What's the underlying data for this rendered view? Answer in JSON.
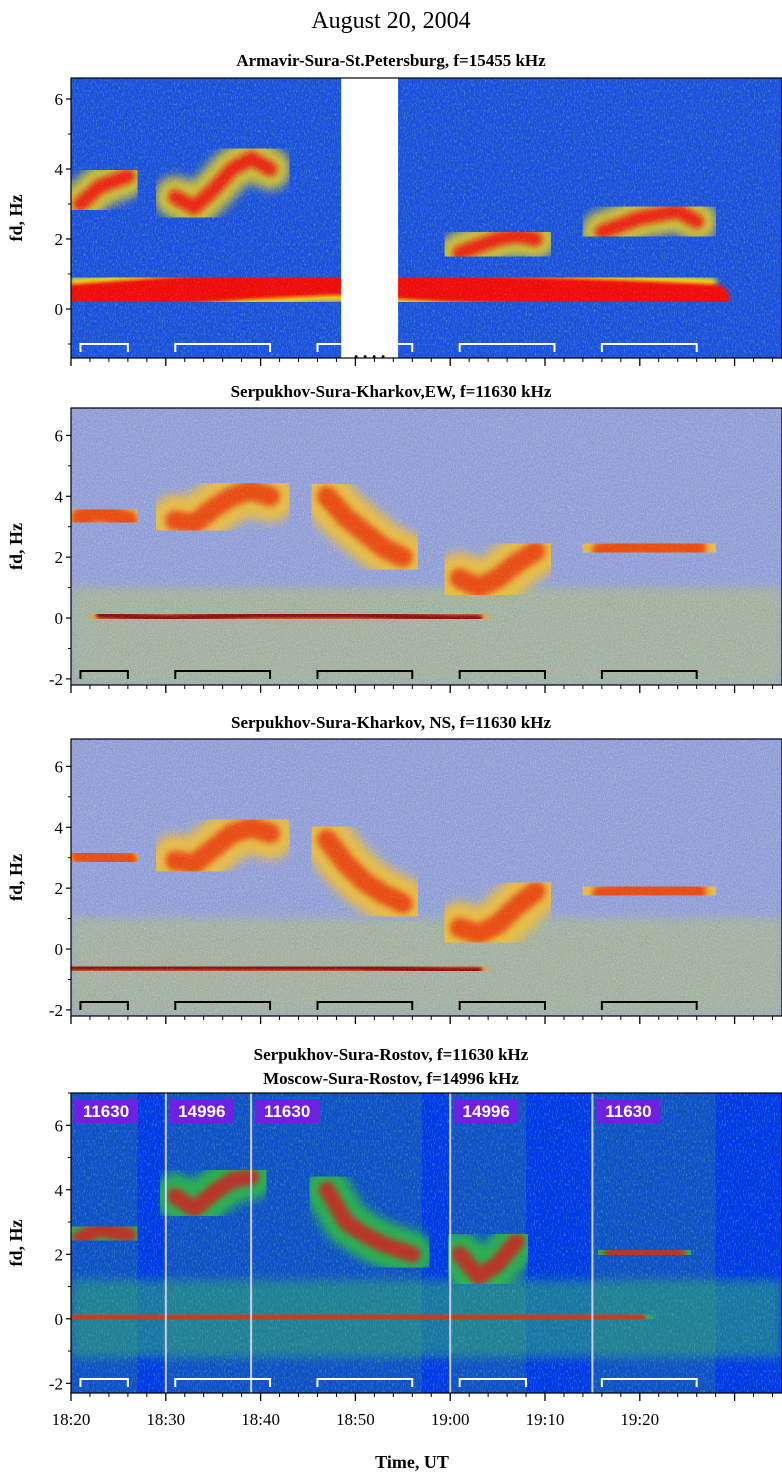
{
  "figure": {
    "title": "August 20, 2004",
    "x_axis_label": "Time, UT"
  },
  "chart_data": [
    {
      "type": "heatmap",
      "panel": "a",
      "title": "Armavir-Sura-St.Petersburg, f=15455 kHz",
      "ylabel": "fd, Hz",
      "xlabel": "",
      "x_range_minutes_after_18_20": [
        0,
        75
      ],
      "ylim": [
        -1.4,
        6.6
      ],
      "yticks": [
        0,
        2,
        4,
        6
      ],
      "palette": "blue-red",
      "data_gap_minutes": [
        28.5,
        34.5
      ],
      "gap_marker": ". . . .",
      "heating_periods": [
        [
          "18:21",
          "18:26"
        ],
        [
          "18:31",
          "18:41"
        ],
        [
          "18:46",
          "18:56"
        ],
        [
          "19:01",
          "19:11"
        ],
        [
          "19:16",
          "19:26"
        ]
      ],
      "traces": [
        {
          "name": "direct signal",
          "x": [
            "18:20",
            "18:30",
            "18:40",
            "18:48",
            "19:00",
            "19:10",
            "19:20",
            "19:28"
          ],
          "y": [
            0.3,
            0.5,
            0.7,
            0.8,
            0.6,
            0.5,
            0.4,
            0.3
          ]
        },
        {
          "name": "scattered signal 1",
          "x": [
            "18:21",
            "18:23",
            "18:26"
          ],
          "y": [
            3.0,
            3.5,
            3.8
          ]
        },
        {
          "name": "scattered signal 2",
          "x": [
            "18:31",
            "18:33",
            "18:35",
            "18:37",
            "18:39",
            "18:41"
          ],
          "y": [
            3.2,
            2.9,
            3.4,
            4.0,
            4.3,
            4.0
          ]
        },
        {
          "name": "scattered signal 3",
          "x": [
            "19:01",
            "19:03",
            "19:05",
            "19:07",
            "19:09"
          ],
          "y": [
            1.6,
            1.8,
            2.0,
            2.1,
            2.0
          ]
        },
        {
          "name": "scattered signal 4",
          "x": [
            "19:16",
            "19:18",
            "19:20",
            "19:22",
            "19:24",
            "19:26"
          ],
          "y": [
            2.2,
            2.4,
            2.6,
            2.7,
            2.8,
            2.5
          ]
        }
      ]
    },
    {
      "type": "heatmap",
      "panel": "b",
      "title": "Serpukhov-Sura-Kharkov,EW, f=11630 kHz",
      "ylabel": "fd, Hz",
      "xlabel": "",
      "x_range_minutes_after_18_20": [
        0,
        75
      ],
      "ylim": [
        -2.2,
        6.9
      ],
      "yticks": [
        -2,
        0,
        2,
        4,
        6
      ],
      "palette": "rainbow-grey",
      "heating_periods": [
        [
          "18:21",
          "18:26"
        ],
        [
          "18:31",
          "18:41"
        ],
        [
          "18:46",
          "18:56"
        ],
        [
          "19:01",
          "19:10"
        ],
        [
          "19:16",
          "19:26"
        ]
      ],
      "traces": [
        {
          "name": "direct signal",
          "x": [
            "18:23",
            "18:30",
            "18:40",
            "18:50",
            "19:00",
            "19:03"
          ],
          "y": [
            0.1,
            0.0,
            0.1,
            0.1,
            0.0,
            0.0
          ]
        },
        {
          "name": "scattered signal 1",
          "x": [
            "18:21",
            "18:23",
            "18:26"
          ],
          "y": [
            3.3,
            3.5,
            3.2
          ]
        },
        {
          "name": "scattered signal 2",
          "x": [
            "18:31",
            "18:33",
            "18:35",
            "18:37",
            "18:39",
            "18:41"
          ],
          "y": [
            3.2,
            3.1,
            3.6,
            4.0,
            4.2,
            4.0
          ]
        },
        {
          "name": "scattered signal 3",
          "x": [
            "18:47",
            "18:49",
            "18:51",
            "18:53",
            "18:55"
          ],
          "y": [
            4.0,
            3.3,
            2.8,
            2.3,
            2.0
          ]
        },
        {
          "name": "scattered signal 4",
          "x": [
            "19:01",
            "19:03",
            "19:05",
            "19:07",
            "19:09"
          ],
          "y": [
            1.3,
            1.0,
            1.3,
            1.8,
            2.2
          ]
        },
        {
          "name": "scattered signal 5",
          "x": [
            "19:16",
            "19:18",
            "19:20",
            "19:22",
            "19:24",
            "19:26"
          ],
          "y": [
            2.2,
            2.3,
            2.4,
            2.3,
            2.4,
            2.3
          ]
        }
      ]
    },
    {
      "type": "heatmap",
      "panel": "c",
      "title": "Serpukhov-Sura-Kharkov, NS, f=11630 kHz",
      "ylabel": "fd, Hz",
      "xlabel": "",
      "x_range_minutes_after_18_20": [
        0,
        75
      ],
      "ylim": [
        -2.2,
        6.9
      ],
      "yticks": [
        -2,
        0,
        2,
        4,
        6
      ],
      "palette": "rainbow-grey",
      "heating_periods": [
        [
          "18:21",
          "18:26"
        ],
        [
          "18:31",
          "18:41"
        ],
        [
          "18:46",
          "18:56"
        ],
        [
          "19:01",
          "19:10"
        ],
        [
          "19:16",
          "19:26"
        ]
      ],
      "traces": [
        {
          "name": "direct signal",
          "x": [
            "18:20",
            "18:30",
            "18:40",
            "18:50",
            "19:00",
            "19:03"
          ],
          "y": [
            -0.6,
            -0.6,
            -0.6,
            -0.6,
            -0.7,
            -0.7
          ]
        },
        {
          "name": "scattered signal 1",
          "x": [
            "18:21",
            "18:23",
            "18:26"
          ],
          "y": [
            3.1,
            3.0,
            2.9
          ]
        },
        {
          "name": "scattered signal 2",
          "x": [
            "18:31",
            "18:33",
            "18:35",
            "18:37",
            "18:39",
            "18:41"
          ],
          "y": [
            2.9,
            2.8,
            3.3,
            3.8,
            4.0,
            3.8
          ]
        },
        {
          "name": "scattered signal 3",
          "x": [
            "18:47",
            "18:49",
            "18:51",
            "18:53",
            "18:55"
          ],
          "y": [
            3.6,
            2.8,
            2.2,
            1.8,
            1.5
          ]
        },
        {
          "name": "scattered signal 4",
          "x": [
            "19:01",
            "19:03",
            "19:05",
            "19:07",
            "19:09"
          ],
          "y": [
            0.7,
            0.5,
            0.8,
            1.4,
            1.9
          ]
        },
        {
          "name": "scattered signal 5",
          "x": [
            "19:16",
            "19:18",
            "19:20",
            "19:22",
            "19:24",
            "19:26"
          ],
          "y": [
            1.8,
            1.9,
            2.0,
            1.9,
            2.0,
            1.9
          ]
        }
      ]
    },
    {
      "type": "heatmap",
      "panel": "d",
      "title": "Serpukhov-Sura-Rostov, f=11630 kHz",
      "subtitle": "Moscow-Sura-Rostov, f=14996 kHz",
      "ylabel": "fd, Hz",
      "xlabel": "Time, UT",
      "x_range_minutes_after_18_20": [
        0,
        75
      ],
      "ylim": [
        -2.3,
        7.0
      ],
      "yticks": [
        -2,
        0,
        2,
        4,
        6
      ],
      "xticks": [
        "18:20",
        "18:30",
        "18:40",
        "18:50",
        "19:00",
        "19:10",
        "19:20"
      ],
      "palette": "blue-green-red",
      "frequency_tags": [
        {
          "label": "11630",
          "from": "18:20",
          "to": "18:27"
        },
        {
          "label": "14996",
          "from": "18:30",
          "to": "18:39"
        },
        {
          "label": "11630",
          "from": "18:39",
          "to": "18:57"
        },
        {
          "label": "14996",
          "from": "19:00",
          "to": "19:08"
        },
        {
          "label": "11630",
          "from": "19:15",
          "to": "19:28"
        }
      ],
      "heating_periods": [
        [
          "18:21",
          "18:26"
        ],
        [
          "18:31",
          "18:41"
        ],
        [
          "18:46",
          "18:56"
        ],
        [
          "19:01",
          "19:08"
        ],
        [
          "19:16",
          "19:26"
        ]
      ],
      "traces": [
        {
          "name": "direct signal",
          "x": [
            "18:20",
            "18:30",
            "18:40",
            "18:50",
            "19:00",
            "19:10",
            "19:20"
          ],
          "y": [
            0.0,
            0.0,
            0.0,
            0.1,
            0.0,
            0.0,
            0.0
          ]
        },
        {
          "name": "scattered signal 1",
          "x": [
            "18:21",
            "18:23",
            "18:26"
          ],
          "y": [
            2.5,
            2.8,
            2.6
          ]
        },
        {
          "name": "scattered signal 2",
          "x": [
            "18:31",
            "18:33",
            "18:35",
            "18:37",
            "18:39"
          ],
          "y": [
            3.8,
            3.4,
            3.9,
            4.3,
            4.4
          ]
        },
        {
          "name": "scattered signal 3",
          "x": [
            "18:47",
            "18:49",
            "18:51",
            "18:53",
            "18:56"
          ],
          "y": [
            4.0,
            3.0,
            2.6,
            2.3,
            2.0
          ]
        },
        {
          "name": "scattered signal 4",
          "x": [
            "19:01",
            "19:03",
            "19:05",
            "19:07"
          ],
          "y": [
            2.0,
            1.3,
            1.7,
            2.4
          ]
        },
        {
          "name": "scattered signal 5",
          "x": [
            "19:17",
            "19:20",
            "19:24"
          ],
          "y": [
            2.0,
            2.1,
            2.0
          ]
        }
      ]
    }
  ]
}
